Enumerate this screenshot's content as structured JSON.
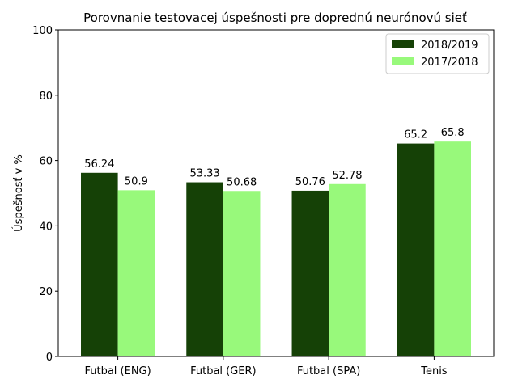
{
  "chart_data": {
    "type": "bar",
    "title": "Porovnanie testovacej úspešnosti pre doprednú neurónovú sieť",
    "xlabel": "",
    "ylabel": "Úspešnosť v %",
    "categories": [
      "Futbal (ENG)",
      "Futbal (GER)",
      "Futbal (SPA)",
      "Tenis"
    ],
    "series": [
      {
        "name": "2018/2019",
        "color": "#154106",
        "values": [
          56.24,
          53.33,
          50.76,
          65.2
        ],
        "labels": [
          "56.24",
          "53.33",
          "50.76",
          "65.2"
        ]
      },
      {
        "name": "2017/2018",
        "color": "#98f97b",
        "values": [
          50.9,
          50.68,
          52.78,
          65.8
        ],
        "labels": [
          "50.9",
          "50.68",
          "52.78",
          "65.8"
        ]
      }
    ],
    "ylim": [
      0,
      100
    ],
    "yticks": [
      0,
      20,
      40,
      60,
      80,
      100
    ],
    "grid": false,
    "legend_position": "top-right"
  }
}
